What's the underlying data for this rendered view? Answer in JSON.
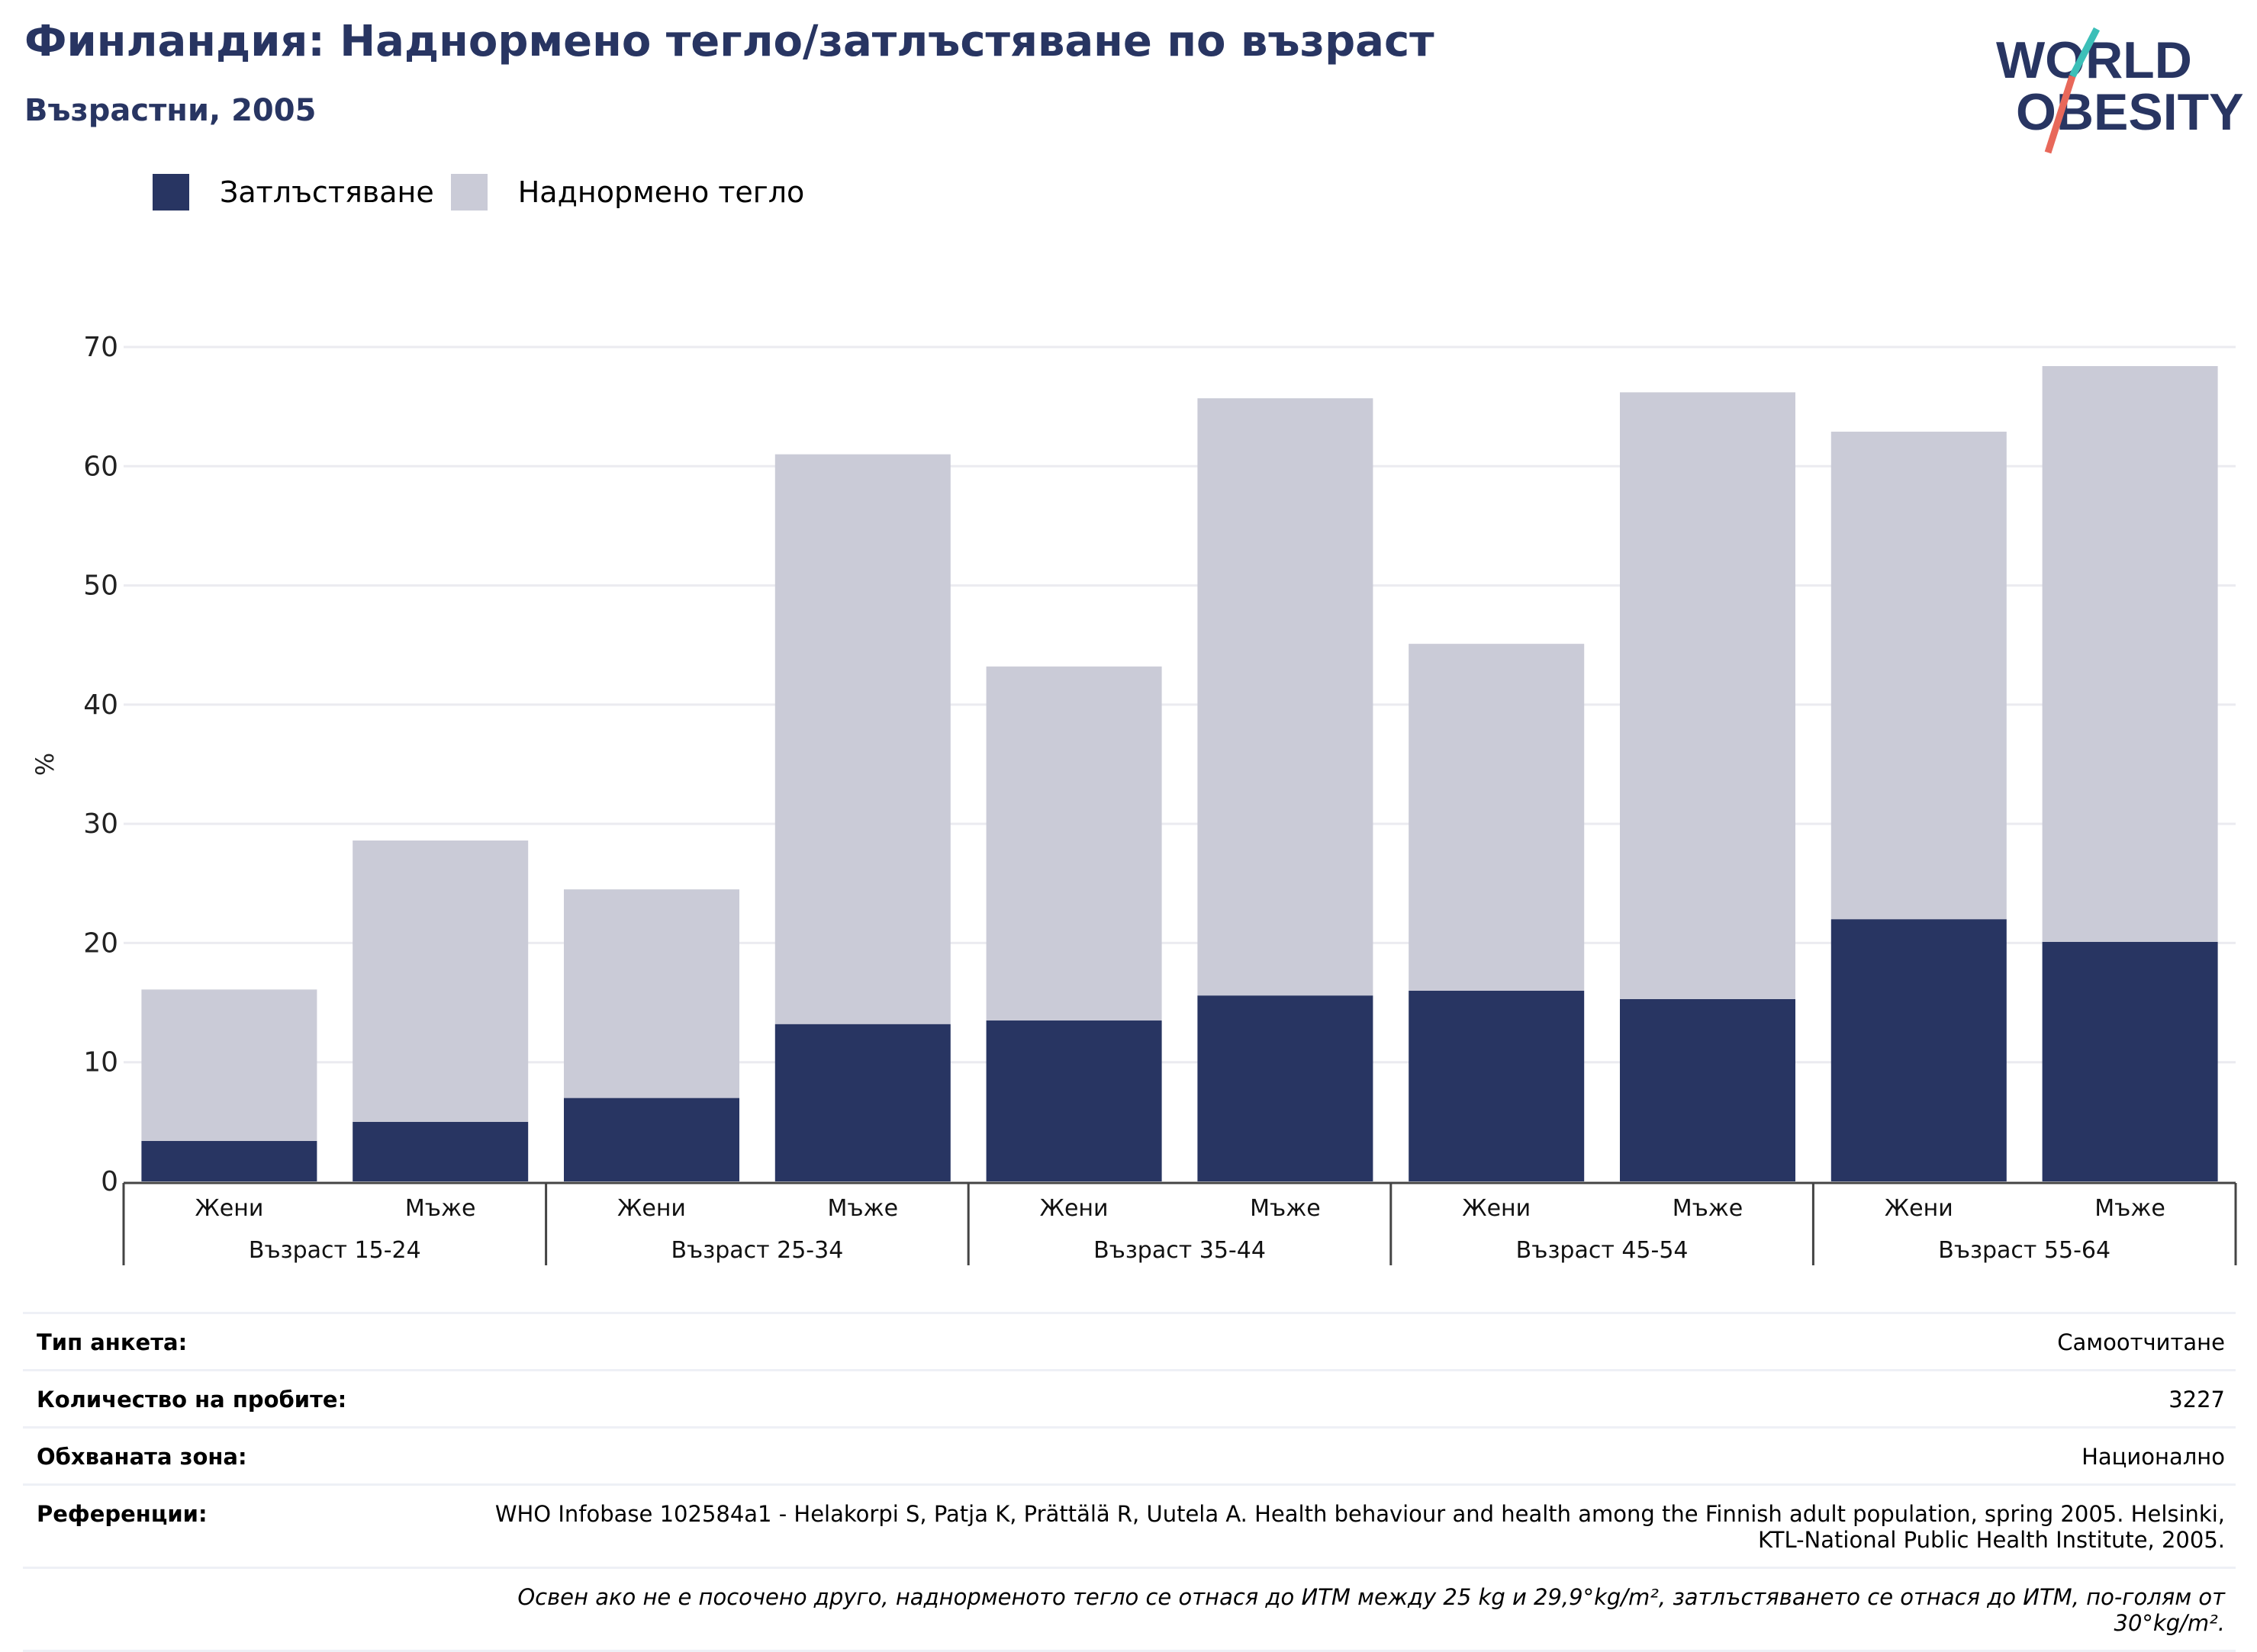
{
  "header": {
    "title": "Финландия: Наднормено тегло/затлъстяване по възраст",
    "subtitle": "Възрастни, 2005"
  },
  "logo": {
    "line1": "WORLD",
    "line2": "OBESITY",
    "colors": {
      "text": "#283562",
      "slash_top": "#3cbfb8",
      "slash_bottom": "#e8685a"
    }
  },
  "legend": [
    {
      "label": "Затлъстяване",
      "color": "#283562"
    },
    {
      "label": "Наднормено тегло",
      "color": "#cacbd7"
    }
  ],
  "chart_data": {
    "type": "bar",
    "stacked": true,
    "ylabel": "%",
    "ylim": [
      0,
      70
    ],
    "yticks": [
      0,
      10,
      20,
      30,
      40,
      50,
      60,
      70
    ],
    "grid": true,
    "legend_position": "top-left",
    "groups": [
      "Възраст 15-24",
      "Възраст 25-34",
      "Възраст 35-44",
      "Възраст 45-54",
      "Възраст 55-64"
    ],
    "categories": [
      "Жени",
      "Мъже",
      "Жени",
      "Мъже",
      "Жени",
      "Мъже",
      "Жени",
      "Мъже",
      "Жени",
      "Мъже"
    ],
    "series": [
      {
        "name": "Затлъстяване",
        "color": "#283562",
        "values": [
          3.4,
          5.0,
          7.0,
          13.2,
          13.5,
          15.6,
          16.0,
          15.3,
          22.0,
          20.1
        ]
      },
      {
        "name": "Наднормено тегло",
        "color": "#cacbd7",
        "values": [
          12.7,
          23.6,
          17.5,
          47.8,
          29.7,
          50.1,
          29.1,
          50.9,
          40.9,
          48.3
        ]
      }
    ]
  },
  "info": {
    "survey_type": {
      "label": "Тип анкета:",
      "value": "Самоотчитане"
    },
    "sample_size": {
      "label": "Количество на пробите:",
      "value": "3227"
    },
    "area": {
      "label": "Обхваната зона:",
      "value": "Национално"
    },
    "references": {
      "label": "Референции:",
      "value": "WHO Infobase 102584a1 - Helakorpi S, Patja K, Prättälä R, Uutela A. Health behaviour and health among the Finnish adult population, spring 2005. Helsinki, KTL-National Public Health Institute, 2005."
    },
    "note": "Освен ако не е посочено друго, наднорменото тегло се отнася до ИТМ между 25 kg и 29,9°kg/m², затлъстяването се отнася до ИТМ, по-голям от 30°kg/m²."
  }
}
